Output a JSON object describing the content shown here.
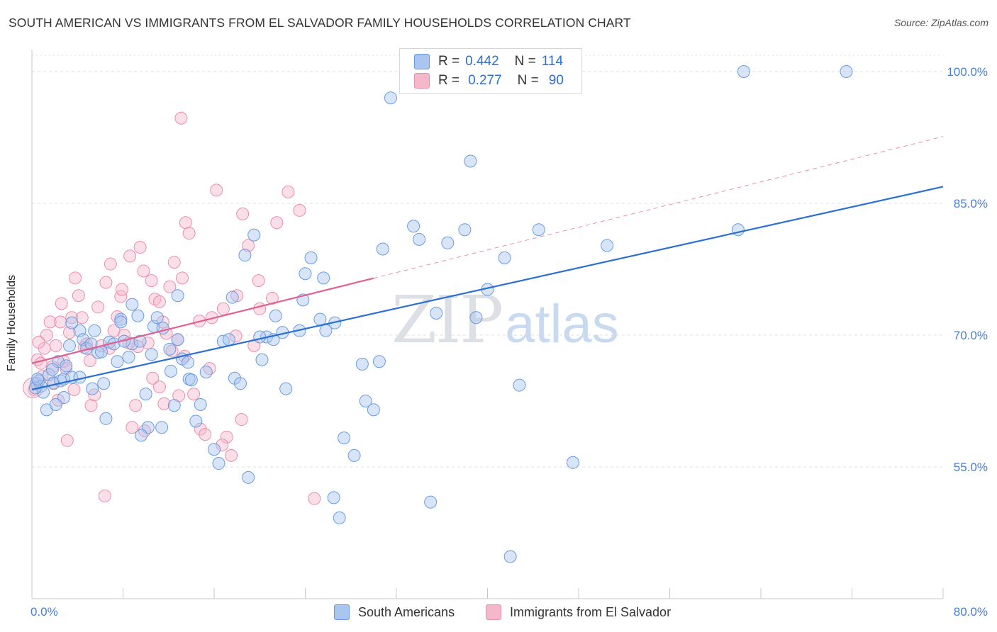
{
  "title": "SOUTH AMERICAN VS IMMIGRANTS FROM EL SALVADOR FAMILY HOUSEHOLDS CORRELATION CHART",
  "source": "Source: ZipAtlas.com",
  "watermark": {
    "zip": "ZIP",
    "atlas": "atlas"
  },
  "legend": {
    "series1": {
      "r_label": "R =",
      "r_value": "0.442",
      "n_label": "N =",
      "n_value": "114"
    },
    "series2": {
      "r_label": "R =",
      "r_value": "0.277",
      "n_label": "N =",
      "n_value": "90"
    }
  },
  "bottom_legend": {
    "series1": "South Americans",
    "series2": "Immigrants from El Salvador"
  },
  "colors": {
    "blue_fill": "#a9c6f0",
    "blue_stroke": "#6a9be0",
    "blue_line": "#2b6fd0",
    "pink_fill": "#f5b8cb",
    "pink_stroke": "#ea8fac",
    "pink_line": "#e06090",
    "grid": "#dcdcdc",
    "axis_text": "#4a7fd0"
  },
  "chart_data": {
    "type": "scatter",
    "title": "SOUTH AMERICAN VS IMMIGRANTS FROM EL SALVADOR FAMILY HOUSEHOLDS CORRELATION CHART",
    "xlabel": "",
    "ylabel": "Family Households",
    "x_ticks": [
      "0.0%",
      "80.0%"
    ],
    "y_ticks": [
      "55.0%",
      "70.0%",
      "85.0%",
      "100.0%"
    ],
    "xlim": [
      0,
      80
    ],
    "ylim": [
      40,
      102.5
    ],
    "gridlines": [
      55,
      70,
      85,
      100
    ],
    "series": [
      {
        "name": "South Americans",
        "R": 0.442,
        "N": 114,
        "trend": {
          "x": [
            0,
            80
          ],
          "y": [
            63.8,
            86.9
          ]
        },
        "points": [
          [
            0.4,
            64.5
          ],
          [
            0.6,
            64.8
          ],
          [
            0.8,
            64.2
          ],
          [
            1.0,
            63.5
          ],
          [
            0.3,
            64.0
          ],
          [
            0.5,
            65.0
          ],
          [
            1.3,
            61.5
          ],
          [
            1.5,
            65.5
          ],
          [
            1.9,
            64.5
          ],
          [
            2.3,
            67.0
          ],
          [
            2.5,
            64.8
          ],
          [
            2.8,
            65.0
          ],
          [
            3.0,
            66.5
          ],
          [
            3.3,
            68.8
          ],
          [
            3.5,
            65.2
          ],
          [
            4.2,
            70.5
          ],
          [
            4.5,
            69.5
          ],
          [
            4.8,
            68.5
          ],
          [
            5.2,
            69.0
          ],
          [
            5.5,
            70.5
          ],
          [
            5.8,
            68.0
          ],
          [
            6.3,
            64.5
          ],
          [
            6.5,
            60.5
          ],
          [
            6.8,
            69.2
          ],
          [
            7.2,
            69.0
          ],
          [
            7.5,
            67.0
          ],
          [
            7.8,
            71.8
          ],
          [
            8.5,
            67.5
          ],
          [
            8.8,
            69.0
          ],
          [
            9.3,
            72.2
          ],
          [
            9.5,
            69.3
          ],
          [
            10.0,
            63.3
          ],
          [
            10.2,
            59.5
          ],
          [
            10.7,
            71.0
          ],
          [
            11.0,
            72.0
          ],
          [
            11.5,
            70.8
          ],
          [
            12.2,
            65.9
          ],
          [
            12.5,
            62.0
          ],
          [
            12.8,
            69.5
          ],
          [
            13.2,
            67.3
          ],
          [
            13.8,
            65.0
          ],
          [
            14.0,
            64.9
          ],
          [
            14.8,
            62.1
          ],
          [
            16.0,
            57.0
          ],
          [
            16.8,
            69.3
          ],
          [
            17.3,
            69.5
          ],
          [
            17.8,
            65.1
          ],
          [
            18.3,
            64.5
          ],
          [
            19.0,
            53.8
          ],
          [
            20.2,
            67.2
          ],
          [
            20.6,
            69.8
          ],
          [
            21.2,
            69.5
          ],
          [
            22.0,
            70.3
          ],
          [
            22.3,
            63.9
          ],
          [
            23.5,
            70.5
          ],
          [
            24.0,
            77.0
          ],
          [
            24.5,
            78.8
          ],
          [
            25.3,
            71.8
          ],
          [
            25.8,
            70.5
          ],
          [
            26.5,
            51.5
          ],
          [
            27.0,
            49.2
          ],
          [
            27.4,
            58.3
          ],
          [
            28.3,
            56.3
          ],
          [
            29.0,
            66.7
          ],
          [
            29.3,
            62.5
          ],
          [
            30.0,
            61.5
          ],
          [
            30.5,
            67.0
          ],
          [
            30.8,
            79.8
          ],
          [
            31.5,
            97.0
          ],
          [
            33.5,
            82.4
          ],
          [
            34.0,
            80.9
          ],
          [
            35.0,
            51.0
          ],
          [
            35.5,
            72.5
          ],
          [
            36.5,
            80.5
          ],
          [
            38.0,
            82.0
          ],
          [
            38.5,
            89.8
          ],
          [
            39.0,
            72.0
          ],
          [
            40.0,
            75.2
          ],
          [
            41.5,
            78.8
          ],
          [
            42.0,
            44.8
          ],
          [
            42.8,
            64.3
          ],
          [
            44.5,
            82.0
          ],
          [
            47.5,
            55.5
          ],
          [
            50.5,
            80.2
          ],
          [
            62.0,
            82.0
          ],
          [
            62.5,
            100.0
          ],
          [
            71.5,
            100.0
          ],
          [
            7.8,
            71.5
          ],
          [
            13.7,
            66.9
          ],
          [
            23.8,
            74.0
          ],
          [
            15.3,
            65.8
          ],
          [
            12.8,
            74.5
          ],
          [
            10.5,
            67.8
          ],
          [
            3.5,
            71.4
          ],
          [
            2.8,
            62.9
          ],
          [
            6.1,
            68.1
          ],
          [
            8.8,
            73.5
          ],
          [
            17.6,
            74.3
          ],
          [
            18.7,
            79.1
          ],
          [
            20.0,
            69.8
          ],
          [
            4.2,
            65.2
          ],
          [
            9.6,
            58.6
          ],
          [
            16.4,
            55.4
          ],
          [
            21.4,
            72.2
          ],
          [
            11.4,
            59.5
          ],
          [
            19.5,
            81.4
          ],
          [
            25.6,
            76.5
          ],
          [
            14.4,
            60.2
          ],
          [
            2.1,
            62.1
          ],
          [
            5.3,
            63.9
          ],
          [
            8.1,
            69.3
          ],
          [
            12.1,
            68.4
          ],
          [
            26.6,
            71.4
          ],
          [
            1.8,
            66.1
          ]
        ]
      },
      {
        "name": "Immigrants from El Salvador",
        "R": 0.277,
        "N": 90,
        "trend": {
          "x": [
            0,
            80
          ],
          "y": [
            66.8,
            92.6
          ]
        },
        "trend_solid_until_x": 30,
        "points": [
          [
            0.2,
            63.8
          ],
          [
            0.5,
            67.2
          ],
          [
            0.8,
            66.8
          ],
          [
            1.1,
            68.5
          ],
          [
            1.3,
            70.0
          ],
          [
            1.6,
            71.5
          ],
          [
            1.8,
            66.4
          ],
          [
            2.1,
            68.8
          ],
          [
            2.3,
            62.6
          ],
          [
            2.5,
            71.5
          ],
          [
            2.8,
            67.0
          ],
          [
            3.0,
            66.2
          ],
          [
            3.3,
            70.3
          ],
          [
            3.5,
            72.0
          ],
          [
            3.8,
            76.5
          ],
          [
            4.1,
            74.5
          ],
          [
            4.4,
            72.0
          ],
          [
            4.8,
            69.0
          ],
          [
            5.2,
            62.0
          ],
          [
            5.5,
            63.2
          ],
          [
            5.8,
            73.2
          ],
          [
            6.1,
            68.8
          ],
          [
            6.5,
            76.0
          ],
          [
            6.8,
            68.5
          ],
          [
            7.2,
            70.5
          ],
          [
            7.5,
            72.1
          ],
          [
            7.8,
            74.4
          ],
          [
            8.1,
            70.0
          ],
          [
            8.5,
            69.1
          ],
          [
            8.8,
            59.5
          ],
          [
            9.1,
            62.0
          ],
          [
            9.5,
            80.0
          ],
          [
            9.8,
            77.3
          ],
          [
            10.2,
            69.1
          ],
          [
            10.5,
            76.2
          ],
          [
            10.8,
            74.1
          ],
          [
            11.2,
            73.8
          ],
          [
            11.5,
            71.5
          ],
          [
            11.8,
            70.2
          ],
          [
            12.1,
            75.5
          ],
          [
            12.5,
            78.3
          ],
          [
            12.8,
            69.5
          ],
          [
            13.2,
            76.5
          ],
          [
            13.5,
            82.8
          ],
          [
            13.8,
            81.6
          ],
          [
            14.2,
            63.3
          ],
          [
            14.8,
            59.3
          ],
          [
            15.2,
            58.7
          ],
          [
            15.8,
            72.0
          ],
          [
            16.2,
            86.5
          ],
          [
            16.8,
            73.0
          ],
          [
            17.1,
            58.4
          ],
          [
            17.5,
            56.3
          ],
          [
            18.0,
            74.5
          ],
          [
            18.5,
            83.8
          ],
          [
            19.0,
            80.2
          ],
          [
            19.5,
            68.8
          ],
          [
            20.0,
            73.0
          ],
          [
            21.5,
            82.8
          ],
          [
            22.5,
            86.3
          ],
          [
            23.5,
            84.2
          ],
          [
            24.8,
            51.4
          ],
          [
            13.1,
            94.7
          ],
          [
            3.1,
            58.0
          ],
          [
            6.4,
            51.7
          ],
          [
            11.6,
            62.2
          ],
          [
            16.7,
            57.5
          ],
          [
            1.9,
            64.6
          ],
          [
            4.6,
            68.6
          ],
          [
            8.6,
            79.0
          ],
          [
            10.6,
            65.1
          ],
          [
            12.3,
            68.2
          ],
          [
            14.7,
            71.6
          ],
          [
            18.4,
            60.4
          ],
          [
            0.9,
            65.3
          ],
          [
            2.6,
            73.6
          ],
          [
            5.1,
            67.1
          ],
          [
            7.9,
            75.2
          ],
          [
            9.3,
            68.7
          ],
          [
            11.2,
            64.1
          ],
          [
            12.9,
            63.1
          ],
          [
            15.6,
            66.2
          ],
          [
            17.9,
            69.9
          ],
          [
            19.9,
            76.2
          ],
          [
            21.1,
            74.2
          ],
          [
            0.6,
            69.2
          ],
          [
            3.7,
            63.8
          ],
          [
            6.9,
            78.1
          ],
          [
            9.9,
            59.1
          ],
          [
            13.4,
            67.6
          ]
        ]
      }
    ]
  }
}
